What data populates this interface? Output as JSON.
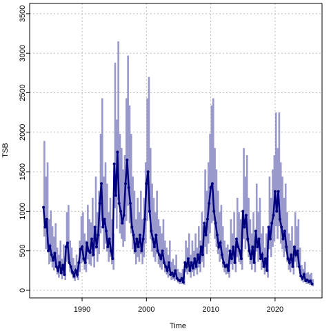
{
  "chart_data": {
    "type": "line",
    "xlabel": "Time",
    "ylabel": "TSB",
    "xlim": [
      1981.85,
      2027.3
    ],
    "ylim": [
      -96,
      3630
    ],
    "xticks": [
      1990,
      2000,
      2010,
      2020
    ],
    "yticks": [
      0,
      500,
      1000,
      1500,
      2000,
      2500,
      3000,
      3500
    ],
    "grid": true,
    "x": [
      1984,
      1984.25,
      1984.5,
      1984.75,
      1985,
      1985.25,
      1985.5,
      1985.75,
      1986,
      1986.25,
      1986.5,
      1986.75,
      1987,
      1987.25,
      1987.5,
      1987.75,
      1988,
      1988.25,
      1988.5,
      1988.75,
      1989,
      1989.25,
      1989.5,
      1989.75,
      1990,
      1990.25,
      1990.5,
      1990.75,
      1991,
      1991.25,
      1991.5,
      1991.75,
      1992,
      1992.25,
      1992.5,
      1992.75,
      1993,
      1993.25,
      1993.5,
      1993.75,
      1994,
      1994.25,
      1994.5,
      1994.75,
      1995,
      1995.25,
      1995.5,
      1995.75,
      1996,
      1996.25,
      1996.5,
      1996.75,
      1997,
      1997.25,
      1997.5,
      1997.75,
      1998,
      1998.25,
      1998.5,
      1998.75,
      1999,
      1999.25,
      1999.5,
      1999.75,
      2000,
      2000.25,
      2000.5,
      2000.75,
      2001,
      2001.25,
      2001.5,
      2001.75,
      2002,
      2002.25,
      2002.5,
      2002.75,
      2003,
      2003.25,
      2003.5,
      2003.75,
      2004,
      2004.25,
      2004.5,
      2004.75,
      2005,
      2005.25,
      2005.5,
      2005.75,
      2006,
      2006.25,
      2006.5,
      2006.75,
      2007,
      2007.25,
      2007.5,
      2007.75,
      2008,
      2008.25,
      2008.5,
      2008.75,
      2009,
      2009.25,
      2009.5,
      2009.75,
      2010,
      2010.25,
      2010.5,
      2010.75,
      2011,
      2011.25,
      2011.5,
      2011.75,
      2012,
      2012.25,
      2012.5,
      2012.75,
      2013,
      2013.25,
      2013.5,
      2013.75,
      2014,
      2014.25,
      2014.5,
      2014.75,
      2015,
      2015.25,
      2015.5,
      2015.75,
      2016,
      2016.25,
      2016.5,
      2016.75,
      2017,
      2017.25,
      2017.5,
      2017.75,
      2018,
      2018.25,
      2018.5,
      2018.75,
      2019,
      2019.25,
      2019.5,
      2019.75,
      2020,
      2020.25,
      2020.5,
      2020.75,
      2021,
      2021.25,
      2021.5,
      2021.75,
      2022,
      2022.25,
      2022.5,
      2022.75,
      2023,
      2023.25,
      2023.5,
      2023.75,
      2024,
      2024.25,
      2024.5,
      2024.75,
      2025,
      2025.25,
      2025.5,
      2025.75
    ],
    "series": [
      {
        "color": "#00007f",
        "values": [
          1050,
          800,
          900,
          500,
          560,
          450,
          380,
          470,
          300,
          250,
          350,
          220,
          320,
          200,
          550,
          600,
          350,
          300,
          230,
          180,
          250,
          200,
          350,
          520,
          550,
          400,
          350,
          600,
          500,
          480,
          650,
          450,
          800,
          550,
          700,
          1100,
          1350,
          800,
          900,
          750,
          550,
          650,
          500,
          400,
          1600,
          1200,
          1750,
          1100,
          1000,
          850,
          950,
          1350,
          1650,
          1300,
          1100,
          800,
          700,
          500,
          650,
          550,
          700,
          500,
          650,
          900,
          1350,
          1500,
          1000,
          750,
          650,
          550,
          700,
          500,
          450,
          400,
          500,
          350,
          300,
          250,
          350,
          200,
          220,
          180,
          250,
          150,
          130,
          120,
          150,
          100,
          350,
          300,
          400,
          250,
          350,
          280,
          400,
          300,
          450,
          350,
          550,
          450,
          850,
          700,
          900,
          1100,
          1300,
          1350,
          1000,
          850,
          700,
          550,
          600,
          450,
          350,
          300,
          320,
          250,
          500,
          400,
          550,
          350,
          650,
          550,
          500,
          400,
          1000,
          800,
          950,
          650,
          500,
          400,
          550,
          350,
          750,
          550,
          650,
          400,
          450,
          300,
          400,
          250,
          800,
          650,
          850,
          950,
          1250,
          1000,
          1250,
          900,
          800,
          650,
          750,
          550,
          400,
          350,
          450,
          300,
          550,
          450,
          500,
          300,
          180,
          150,
          200,
          120,
          130,
          110,
          120,
          80
        ]
      }
    ],
    "band": {
      "color": "#9999cc",
      "upper": [
        1890,
        1440,
        1620,
        900,
        1010,
        810,
        680,
        850,
        540,
        450,
        630,
        400,
        580,
        360,
        990,
        1080,
        630,
        540,
        410,
        320,
        450,
        360,
        630,
        940,
        990,
        720,
        630,
        1080,
        900,
        860,
        1170,
        810,
        1440,
        990,
        1260,
        1980,
        2430,
        1440,
        1620,
        1350,
        990,
        1170,
        900,
        720,
        2880,
        2160,
        3150,
        1980,
        1800,
        1530,
        1710,
        2430,
        2970,
        2340,
        1980,
        1440,
        1260,
        900,
        1170,
        990,
        1260,
        900,
        1170,
        1620,
        2430,
        2700,
        1800,
        1350,
        1170,
        990,
        1260,
        900,
        810,
        720,
        900,
        630,
        540,
        450,
        630,
        360,
        400,
        320,
        450,
        270,
        230,
        220,
        270,
        180,
        630,
        540,
        720,
        450,
        630,
        500,
        720,
        540,
        810,
        630,
        990,
        810,
        1530,
        1260,
        1620,
        1980,
        2340,
        2430,
        1800,
        1530,
        1260,
        990,
        1080,
        810,
        630,
        540,
        580,
        450,
        900,
        720,
        990,
        630,
        1170,
        990,
        900,
        720,
        1800,
        1440,
        1710,
        1170,
        900,
        720,
        990,
        630,
        1350,
        990,
        1170,
        720,
        810,
        540,
        720,
        450,
        1440,
        1170,
        1530,
        1710,
        2250,
        1800,
        2250,
        1620,
        1440,
        1170,
        1350,
        990,
        720,
        630,
        810,
        540,
        990,
        810,
        900,
        540,
        320,
        270,
        360,
        220,
        230,
        200,
        220,
        140
      ],
      "lower": [
        680,
        520,
        590,
        330,
        360,
        290,
        250,
        310,
        200,
        160,
        230,
        140,
        210,
        130,
        360,
        390,
        230,
        200,
        150,
        120,
        160,
        130,
        230,
        340,
        360,
        260,
        230,
        390,
        330,
        310,
        420,
        290,
        520,
        360,
        460,
        720,
        880,
        520,
        590,
        490,
        360,
        420,
        330,
        260,
        1040,
        780,
        1140,
        720,
        650,
        550,
        620,
        880,
        1070,
        850,
        720,
        520,
        460,
        330,
        420,
        360,
        460,
        330,
        420,
        590,
        880,
        980,
        650,
        490,
        420,
        360,
        460,
        330,
        290,
        260,
        330,
        230,
        200,
        160,
        230,
        130,
        140,
        120,
        160,
        100,
        80,
        80,
        100,
        70,
        230,
        200,
        260,
        160,
        230,
        180,
        260,
        200,
        290,
        230,
        360,
        290,
        550,
        460,
        590,
        720,
        850,
        880,
        650,
        550,
        460,
        360,
        390,
        290,
        230,
        200,
        210,
        160,
        330,
        260,
        360,
        230,
        420,
        360,
        330,
        260,
        650,
        520,
        620,
        420,
        330,
        260,
        360,
        230,
        490,
        360,
        420,
        260,
        290,
        200,
        260,
        160,
        520,
        420,
        550,
        620,
        810,
        650,
        810,
        590,
        520,
        420,
        490,
        360,
        260,
        230,
        290,
        200,
        360,
        290,
        330,
        200,
        120,
        100,
        130,
        80,
        80,
        70,
        80,
        50
      ]
    }
  }
}
